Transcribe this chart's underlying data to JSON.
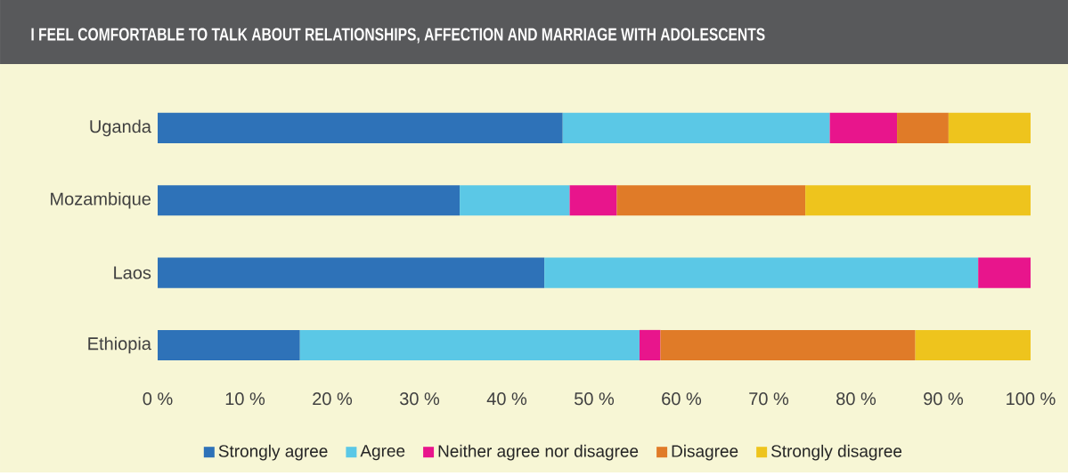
{
  "chart_data": {
    "type": "bar",
    "orientation": "horizontal",
    "stacked": true,
    "title": "I FEEL COMFORTABLE TO TALK ABOUT RELATIONSHIPS, AFFECTION AND MARRIAGE WITH ADOLESCENTS",
    "categories": [
      "Uganda",
      "Mozambique",
      "Laos",
      "Ethiopia"
    ],
    "series": [
      {
        "name": "Strongly agree",
        "color": "#2e72b8",
        "values": [
          46.4,
          34.6,
          44.3,
          16.3
        ]
      },
      {
        "name": "Agree",
        "color": "#5bc8e6",
        "values": [
          30.6,
          12.6,
          49.7,
          38.9
        ]
      },
      {
        "name": "Neither agree nor disagree",
        "color": "#e8158c",
        "values": [
          7.7,
          5.4,
          6.0,
          2.4
        ]
      },
      {
        "name": "Disagree",
        "color": "#e07b28",
        "values": [
          5.9,
          21.6,
          null,
          29.2
        ]
      },
      {
        "name": "Strongly disagree",
        "color": "#eec41d",
        "values": [
          9.4,
          25.8,
          null,
          13.2
        ]
      }
    ],
    "xlim": [
      0,
      100
    ],
    "xticks": [
      {
        "value": 0,
        "label": "0 %"
      },
      {
        "value": 10,
        "label": "10 %"
      },
      {
        "value": 20,
        "label": "20 %"
      },
      {
        "value": 30,
        "label": "30 %"
      },
      {
        "value": 40,
        "label": "40 %"
      },
      {
        "value": 50,
        "label": "50 %"
      },
      {
        "value": 60,
        "label": "60 %"
      },
      {
        "value": 70,
        "label": "70 %"
      },
      {
        "value": 80,
        "label": "80 %"
      },
      {
        "value": 90,
        "label": "90 %"
      },
      {
        "value": 100,
        "label": "100 %"
      }
    ],
    "legend": "bottom"
  }
}
